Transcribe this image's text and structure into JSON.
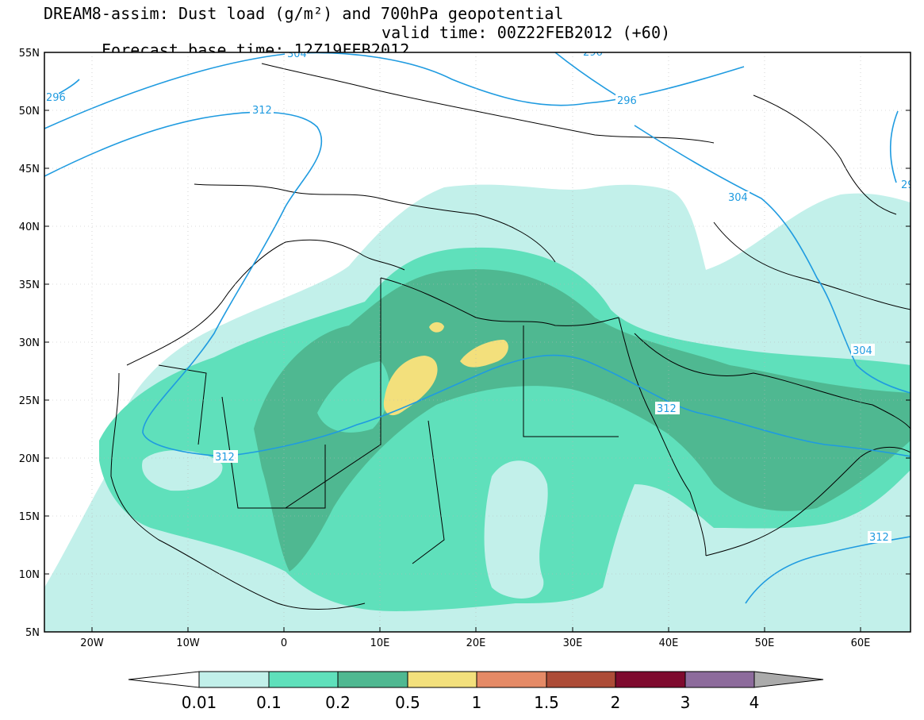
{
  "title": {
    "line1": "DREAM8-assim: Dust load (g/m²) and 700hPa geopotential",
    "line2_left": "Forecast base time: 12Z19FEB2012",
    "line2_right": "valid time: 00Z22FEB2012 (+60)"
  },
  "axes": {
    "lon_labels": [
      "20W",
      "10W",
      "0",
      "10E",
      "20E",
      "30E",
      "40E",
      "50E",
      "60E"
    ],
    "lat_labels": [
      "55N",
      "50N",
      "45N",
      "40N",
      "35N",
      "30N",
      "25N",
      "20N",
      "15N",
      "10N",
      "5N"
    ],
    "lon_range": [
      -25,
      65
    ],
    "lat_range": [
      5,
      55
    ]
  },
  "contour_labels": [
    "304",
    "296",
    "312",
    "296",
    "312",
    "304",
    "304",
    "312",
    "312",
    "312",
    "296",
    "296"
  ],
  "legend": {
    "levels": [
      "0.01",
      "0.1",
      "0.2",
      "0.5",
      "1",
      "1.5",
      "2",
      "3",
      "4"
    ],
    "colors": [
      "#c2f0ea",
      "#5fe0bb",
      "#4fb891",
      "#f3e07c",
      "#e58a66",
      "#ad4c37",
      "#7e0a2e",
      "#8d6b9c",
      "#ababab"
    ],
    "under_color": "#ffffff"
  },
  "colors": {
    "contour_line": "#1f9be0",
    "coastline": "#000000",
    "frame": "#000000"
  }
}
